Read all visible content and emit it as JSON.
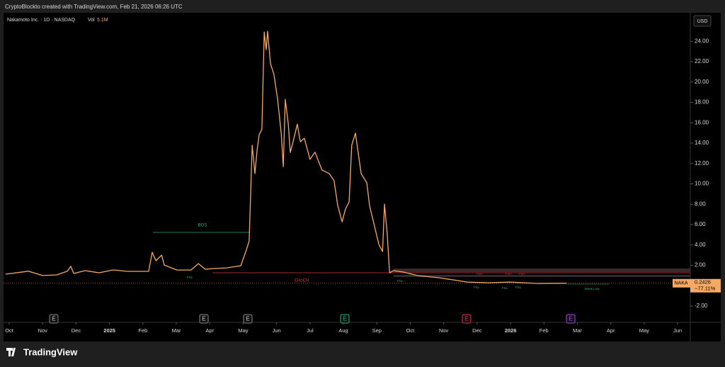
{
  "header": "CryptoBlockto created with TradingView.com, Feb 21, 2026 06:26 UTC",
  "brand": "TradingView",
  "chart_data": {
    "type": "line",
    "currency": "USD",
    "volume_label": "Vol",
    "volume": "5.1M",
    "x": [
      -0.11,
      0.57,
      1.0,
      1.42,
      1.74,
      1.84,
      1.93,
      2.27,
      2.69,
      3.11,
      3.54,
      4.17,
      4.28,
      4.39,
      4.56,
      4.64,
      5.02,
      5.44,
      5.66,
      5.87,
      6.08,
      6.5,
      6.93,
      7.1,
      7.18,
      7.27,
      7.35,
      7.42,
      7.48,
      7.56,
      7.63,
      7.69,
      7.73,
      7.82,
      7.92,
      8.03,
      8.14,
      8.2,
      8.26,
      8.35,
      8.41,
      8.52,
      8.62,
      8.71,
      8.83,
      9.0,
      9.15,
      9.36,
      9.58,
      9.72,
      9.83,
      9.96,
      10.06,
      10.17,
      10.25,
      10.36,
      10.44,
      10.53,
      10.7,
      10.78,
      10.91,
      11.06,
      11.17,
      11.23,
      11.31,
      11.38,
      11.5,
      11.8,
      12.22,
      12.86,
      13.71,
      14.34,
      14.98,
      15.83,
      16.67
    ],
    "series": [
      {
        "name": "Nakamoto Inc. · 1D · NASDAQ",
        "color": "#f5a962",
        "values": [
          1.13,
          1.42,
          1.0,
          1.06,
          1.42,
          1.91,
          1.2,
          1.48,
          1.27,
          1.55,
          1.41,
          1.41,
          3.28,
          2.45,
          3.0,
          2.03,
          1.54,
          1.54,
          2.17,
          1.61,
          1.68,
          1.75,
          1.96,
          3.56,
          4.39,
          13.79,
          11.0,
          13.43,
          14.82,
          15.38,
          24.91,
          23.17,
          24.98,
          21.78,
          20.74,
          18.3,
          14.96,
          11.69,
          18.3,
          15.86,
          13.08,
          14.48,
          15.86,
          14.13,
          14.48,
          12.41,
          13.11,
          11.35,
          11.0,
          10.31,
          7.87,
          6.27,
          7.52,
          8.22,
          13.79,
          14.98,
          13.11,
          11.0,
          10.1,
          7.87,
          6.13,
          4.05,
          3.35,
          8.01,
          5.09,
          1.27,
          1.48,
          1.34,
          0.99,
          0.78,
          0.36,
          0.29,
          0.36,
          0.22,
          0.24
        ]
      }
    ],
    "xlim": [
      -0.17,
      20.38
    ],
    "ylim": [
      -3.6,
      26.8
    ],
    "xticks": [
      {
        "value": 0,
        "label": "Oct"
      },
      {
        "value": 1,
        "label": "Nov"
      },
      {
        "value": 2,
        "label": "Dec"
      },
      {
        "value": 3,
        "label": "2025"
      },
      {
        "value": 4,
        "label": "Feb"
      },
      {
        "value": 5,
        "label": "Mar"
      },
      {
        "value": 6,
        "label": "Apr"
      },
      {
        "value": 7,
        "label": "May"
      },
      {
        "value": 8,
        "label": "Jun"
      },
      {
        "value": 9,
        "label": "Jul"
      },
      {
        "value": 10,
        "label": "Aug"
      },
      {
        "value": 11,
        "label": "Sep"
      },
      {
        "value": 12,
        "label": "Oct"
      },
      {
        "value": 13,
        "label": "Nov"
      },
      {
        "value": 14,
        "label": "Dec"
      },
      {
        "value": 15,
        "label": "2026"
      },
      {
        "value": 16,
        "label": "Feb"
      },
      {
        "value": 17,
        "label": "Mar"
      },
      {
        "value": 18,
        "label": "Apr"
      },
      {
        "value": 19,
        "label": "May"
      },
      {
        "value": 20,
        "label": "Jun"
      }
    ],
    "yticks": [
      {
        "value": 24,
        "label": "24.00"
      },
      {
        "value": 22,
        "label": "22.00"
      },
      {
        "value": 20,
        "label": "20.00"
      },
      {
        "value": 18,
        "label": "18.00"
      },
      {
        "value": 16,
        "label": "16.00"
      },
      {
        "value": 14,
        "label": "14.00"
      },
      {
        "value": 12,
        "label": "12.00"
      },
      {
        "value": 10,
        "label": "10.00"
      },
      {
        "value": 8,
        "label": "8.00"
      },
      {
        "value": 6,
        "label": "6.00"
      },
      {
        "value": 4,
        "label": "4.00"
      },
      {
        "value": 2,
        "label": "2.00"
      },
      {
        "value": -2,
        "label": "-2.00"
      }
    ],
    "grid": false,
    "last_price": {
      "symbol": "NAKA",
      "value": 0.2426,
      "change": "−77.11%"
    },
    "annotations": [
      "BOS",
      "CHoCH",
      "FSL",
      "FSL",
      "FSH",
      "FSH",
      "FSH",
      "FSL",
      "FSL",
      "FSL",
      "Weak Low"
    ],
    "events": [
      "E",
      "E",
      "E",
      "E",
      "E",
      "E"
    ]
  }
}
